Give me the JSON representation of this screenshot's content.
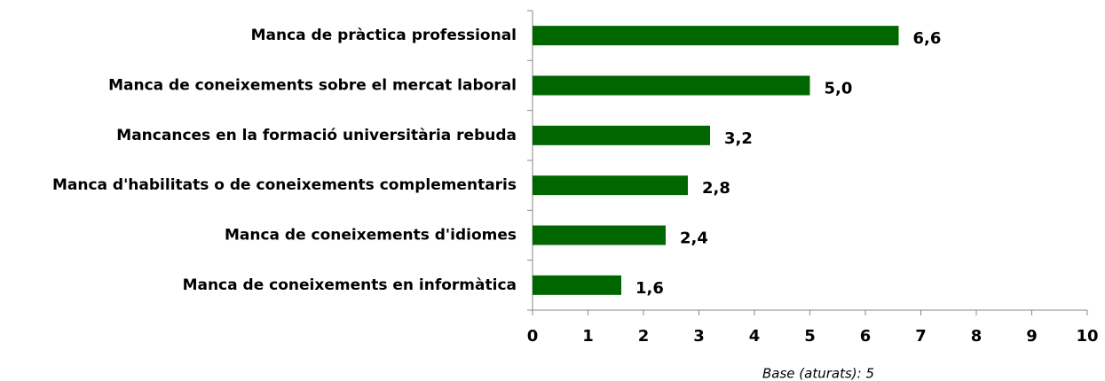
{
  "chart_data": {
    "type": "bar",
    "orientation": "horizontal",
    "categories": [
      "Manca de pràctica professional",
      "Manca de coneixements sobre el mercat laboral",
      "Mancances en la formació universitària rebuda",
      "Manca d'habilitats o de coneixements complementaris",
      "Manca de coneixements d'idiomes",
      "Manca de coneixements en informàtica"
    ],
    "values": [
      6.6,
      5.0,
      3.2,
      2.8,
      2.4,
      1.6
    ],
    "value_labels": [
      "6,6",
      "5,0",
      "3,2",
      "2,8",
      "2,4",
      "1,6"
    ],
    "color": "#006600",
    "xlim": [
      0,
      10
    ],
    "xticks": [
      0,
      1,
      2,
      3,
      4,
      5,
      6,
      7,
      8,
      9,
      10
    ],
    "annotation": "Base (aturats): 5"
  }
}
